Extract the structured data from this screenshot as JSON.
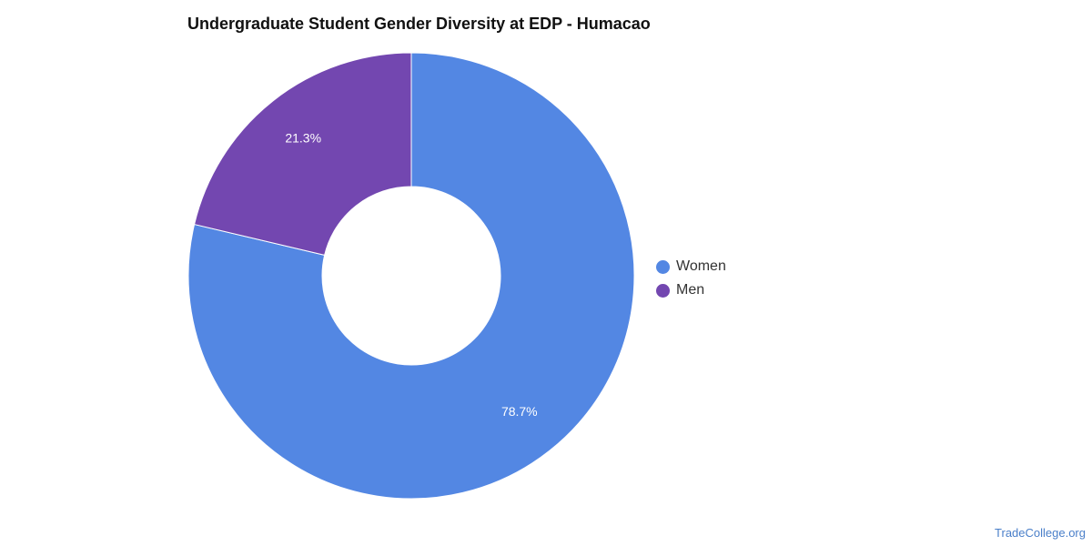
{
  "chart_data": {
    "type": "pie",
    "title": "Undergraduate Student Gender Diversity at EDP - Humacao",
    "donut": true,
    "slices": [
      {
        "name": "Women",
        "value": 78.7,
        "label": "78.7%",
        "color": "#5387e3"
      },
      {
        "name": "Men",
        "value": 21.3,
        "label": "21.3%",
        "color": "#7347b0"
      }
    ],
    "legend": {
      "position": "right",
      "items": [
        {
          "label": "Women",
          "color": "#5387e3"
        },
        {
          "label": "Men",
          "color": "#7347b0"
        }
      ]
    }
  },
  "footer": {
    "source": "TradeCollege.org"
  }
}
